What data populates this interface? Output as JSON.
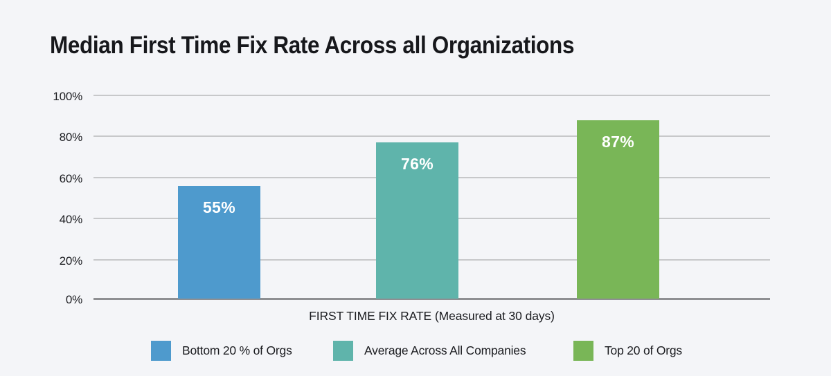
{
  "colors": {
    "background": "#f4f5f8",
    "grid": "#c7c8ca",
    "axis": "#8e8f92",
    "text": "#1b1c20",
    "bar_value_text": "#ffffff"
  },
  "chart_data": {
    "type": "bar",
    "title": "Median First Time Fix Rate Across all Organizations",
    "categories": [
      "Bottom 20 % of Orgs",
      "Average Across All Companies",
      "Top 20 of Orgs"
    ],
    "values": [
      55,
      76,
      87
    ],
    "value_labels": [
      "55%",
      "76%",
      "87%"
    ],
    "colors": [
      "#4e9acd",
      "#5fb4ab",
      "#79b657"
    ],
    "xlabel": "FIRST TIME FIX RATE (Measured at 30 days)",
    "ylabel": "",
    "ylim": [
      0,
      100
    ],
    "ytick_labels": [
      "100%",
      "80%",
      "60%",
      "40%",
      "20%",
      "0%"
    ],
    "grid": true,
    "legend": {
      "position": "bottom",
      "items": [
        {
          "label": "Bottom 20 % of Orgs",
          "color": "#4e9acd"
        },
        {
          "label": "Average Across All Companies",
          "color": "#5fb4ab"
        },
        {
          "label": "Top 20 of Orgs",
          "color": "#79b657"
        }
      ]
    }
  }
}
